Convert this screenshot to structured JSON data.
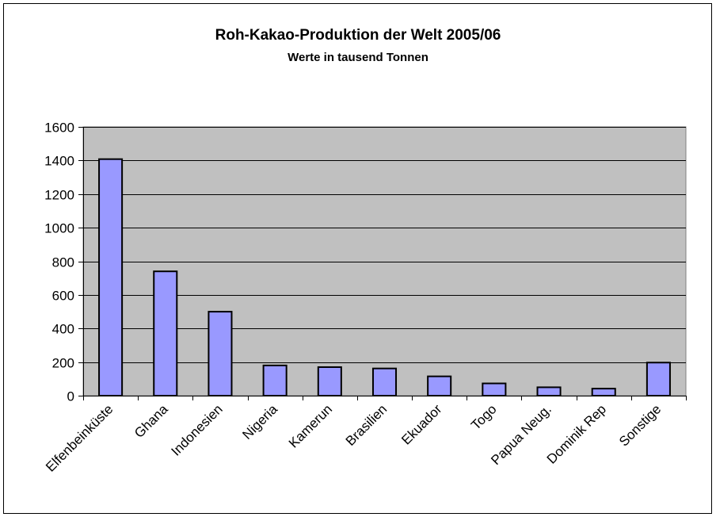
{
  "chart_data": {
    "type": "bar",
    "title": "Roh-Kakao-Produktion der Welt 2005/06",
    "subtitle": "Werte in tausend Tonnen",
    "categories": [
      "Elfenbeinküste",
      "Ghana",
      "Indonesien",
      "Nigeria",
      "Kamerun",
      "Brasilien",
      "Ekuador",
      "Togo",
      "Papua Neug.",
      "Dominik Rep",
      "Sonstige"
    ],
    "values": [
      1408,
      740,
      500,
      180,
      170,
      162,
      115,
      73,
      50,
      42,
      197
    ],
    "y_ticks": [
      "0",
      "200",
      "400",
      "600",
      "800",
      "1000",
      "1200",
      "1400",
      "1600"
    ],
    "ylim": [
      0,
      1600
    ],
    "grid": true,
    "legend": "none",
    "colors": {
      "bar_fill": "#9999ff",
      "bar_stroke": "#000000",
      "plot_background": "#c0c0c0",
      "gridline": "#000000"
    }
  }
}
